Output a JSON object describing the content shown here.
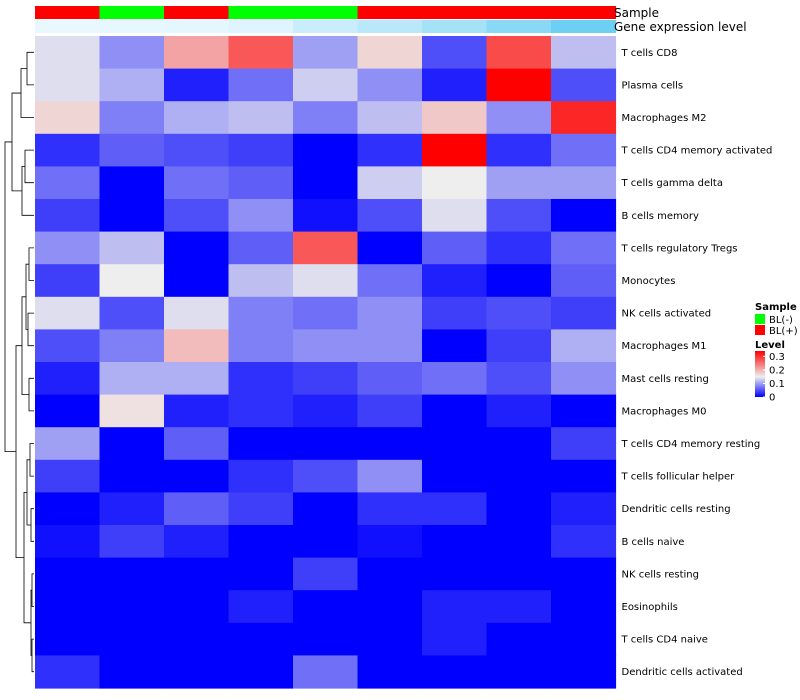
{
  "chart_data": {
    "type": "heatmap",
    "annotation_labels": [
      "Sample",
      "Gene expression level"
    ],
    "rows": [
      "T cells CD8",
      "Plasma cells",
      "Macrophages M2",
      "T cells CD4 memory activated",
      "T cells gamma delta",
      "B cells memory",
      "T cells regulatory  Tregs",
      "Monocytes",
      "NK cells activated",
      "Macrophages M1",
      "Mast cells resting",
      "Macrophages M0",
      "T cells CD4 memory resting",
      "T cells follicular helper",
      "Dendritic cells resting",
      "B cells naive",
      "NK cells resting",
      "Eosinophils",
      "T cells CD4 naive",
      "Dendritic cells activated"
    ],
    "column_groups": [
      "BL(+)",
      "BL(-)",
      "BL(+)",
      "BL(-)",
      "BL(-)",
      "BL(+)",
      "BL(+)",
      "BL(+)",
      "BL(+)"
    ],
    "expression_annotation": [
      0.02,
      0.03,
      0.05,
      0.08,
      0.22,
      0.32,
      0.45,
      0.62,
      0.8
    ],
    "values": [
      [
        0.14,
        0.09,
        0.21,
        0.27,
        0.1,
        0.17,
        0.05,
        0.28,
        0.12
      ],
      [
        0.14,
        0.11,
        0.02,
        0.07,
        0.13,
        0.09,
        0.02,
        0.34,
        0.05
      ],
      [
        0.17,
        0.08,
        0.11,
        0.12,
        0.08,
        0.12,
        0.18,
        0.09,
        0.31
      ],
      [
        0.03,
        0.06,
        0.05,
        0.04,
        0.0,
        0.03,
        0.34,
        0.03,
        0.07
      ],
      [
        0.07,
        0.0,
        0.07,
        0.06,
        0.0,
        0.13,
        0.15,
        0.1,
        0.1
      ],
      [
        0.04,
        0.0,
        0.05,
        0.09,
        0.01,
        0.05,
        0.14,
        0.05,
        0.0
      ],
      [
        0.09,
        0.12,
        0.0,
        0.06,
        0.27,
        0.0,
        0.06,
        0.03,
        0.07
      ],
      [
        0.04,
        0.15,
        0.0,
        0.12,
        0.14,
        0.07,
        0.02,
        0.0,
        0.06
      ],
      [
        0.14,
        0.05,
        0.14,
        0.08,
        0.07,
        0.09,
        0.04,
        0.05,
        0.04
      ],
      [
        0.05,
        0.08,
        0.19,
        0.08,
        0.09,
        0.09,
        0.0,
        0.04,
        0.11
      ],
      [
        0.02,
        0.11,
        0.11,
        0.03,
        0.04,
        0.06,
        0.07,
        0.05,
        0.09
      ],
      [
        0.0,
        0.16,
        0.02,
        0.03,
        0.02,
        0.04,
        0.0,
        0.02,
        0.0
      ],
      [
        0.1,
        0.0,
        0.06,
        0.0,
        0.0,
        0.0,
        0.0,
        0.0,
        0.04
      ],
      [
        0.04,
        0.0,
        0.0,
        0.03,
        0.05,
        0.09,
        0.0,
        0.0,
        0.0
      ],
      [
        0.0,
        0.02,
        0.06,
        0.04,
        0.0,
        0.03,
        0.03,
        0.0,
        0.02
      ],
      [
        0.01,
        0.04,
        0.02,
        0.0,
        0.0,
        0.01,
        0.0,
        0.0,
        0.03
      ],
      [
        0.0,
        0.0,
        0.0,
        0.0,
        0.04,
        0.0,
        0.0,
        0.0,
        0.0
      ],
      [
        0.0,
        0.0,
        0.0,
        0.02,
        0.0,
        0.0,
        0.02,
        0.02,
        0.0
      ],
      [
        0.0,
        0.0,
        0.0,
        0.0,
        0.0,
        0.0,
        0.02,
        0.0,
        0.0
      ],
      [
        0.03,
        0.0,
        0.0,
        0.0,
        0.07,
        0.0,
        0.0,
        0.0,
        0.0
      ]
    ],
    "color_scale": {
      "low": "#0000ff",
      "mid": "#eeeeee",
      "high": "#ff0000",
      "min": 0,
      "mid_value": 0.15,
      "max": 0.34
    },
    "group_colors": {
      "BL(-)": "#00ff00",
      "BL(+)": "#ff0000"
    },
    "expression_colors": {
      "low": "#ecf8ff",
      "high": "#4cc6f0"
    },
    "legend": {
      "sample_title": "Sample",
      "sample_items": [
        "BL(-)",
        "BL(+)"
      ],
      "level_title": "Level",
      "level_ticks": [
        "0.3",
        "0.2",
        "0.1",
        "0"
      ],
      "level_tick_values": [
        0.3,
        0.2,
        0.1,
        0
      ]
    }
  }
}
